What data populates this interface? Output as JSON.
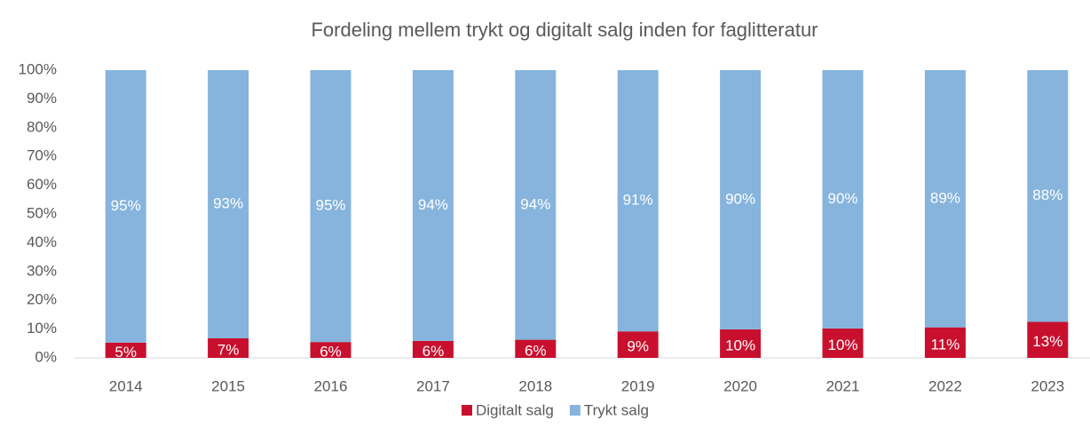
{
  "chart_data": {
    "type": "stacked_bar",
    "title": "Fordeling mellem trykt og digitalt salg inden for faglitteratur",
    "categories": [
      "2014",
      "2015",
      "2016",
      "2017",
      "2018",
      "2019",
      "2020",
      "2021",
      "2022",
      "2023"
    ],
    "series": [
      {
        "name": "Digitalt salg",
        "color": "#c8102e",
        "values": [
          5.3,
          6.8,
          5.5,
          5.9,
          6.3,
          9.2,
          9.9,
          10.2,
          10.6,
          12.5
        ],
        "value_labels": [
          "5%",
          "7%",
          "6%",
          "6%",
          "6%",
          "9%",
          "10%",
          "10%",
          "11%",
          "13%"
        ]
      },
      {
        "name": "Trykt salg",
        "color": "#86b4dc",
        "values": [
          94.7,
          93.2,
          94.5,
          94.1,
          93.7,
          90.8,
          90.1,
          89.8,
          89.4,
          87.5
        ],
        "value_labels": [
          "95%",
          "93%",
          "95%",
          "94%",
          "94%",
          "91%",
          "90%",
          "90%",
          "89%",
          "88%"
        ]
      }
    ],
    "ylim": [
      0,
      100
    ],
    "yticks": [
      {
        "value": 0,
        "label": "0%"
      },
      {
        "value": 10,
        "label": "10%"
      },
      {
        "value": 20,
        "label": "20%"
      },
      {
        "value": 30,
        "label": "30%"
      },
      {
        "value": 40,
        "label": "40%"
      },
      {
        "value": 50,
        "label": "50%"
      },
      {
        "value": 60,
        "label": "60%"
      },
      {
        "value": 70,
        "label": "70%"
      },
      {
        "value": 80,
        "label": "80%"
      },
      {
        "value": 90,
        "label": "90%"
      },
      {
        "value": 100,
        "label": "100%"
      }
    ],
    "legend": "bottom"
  }
}
